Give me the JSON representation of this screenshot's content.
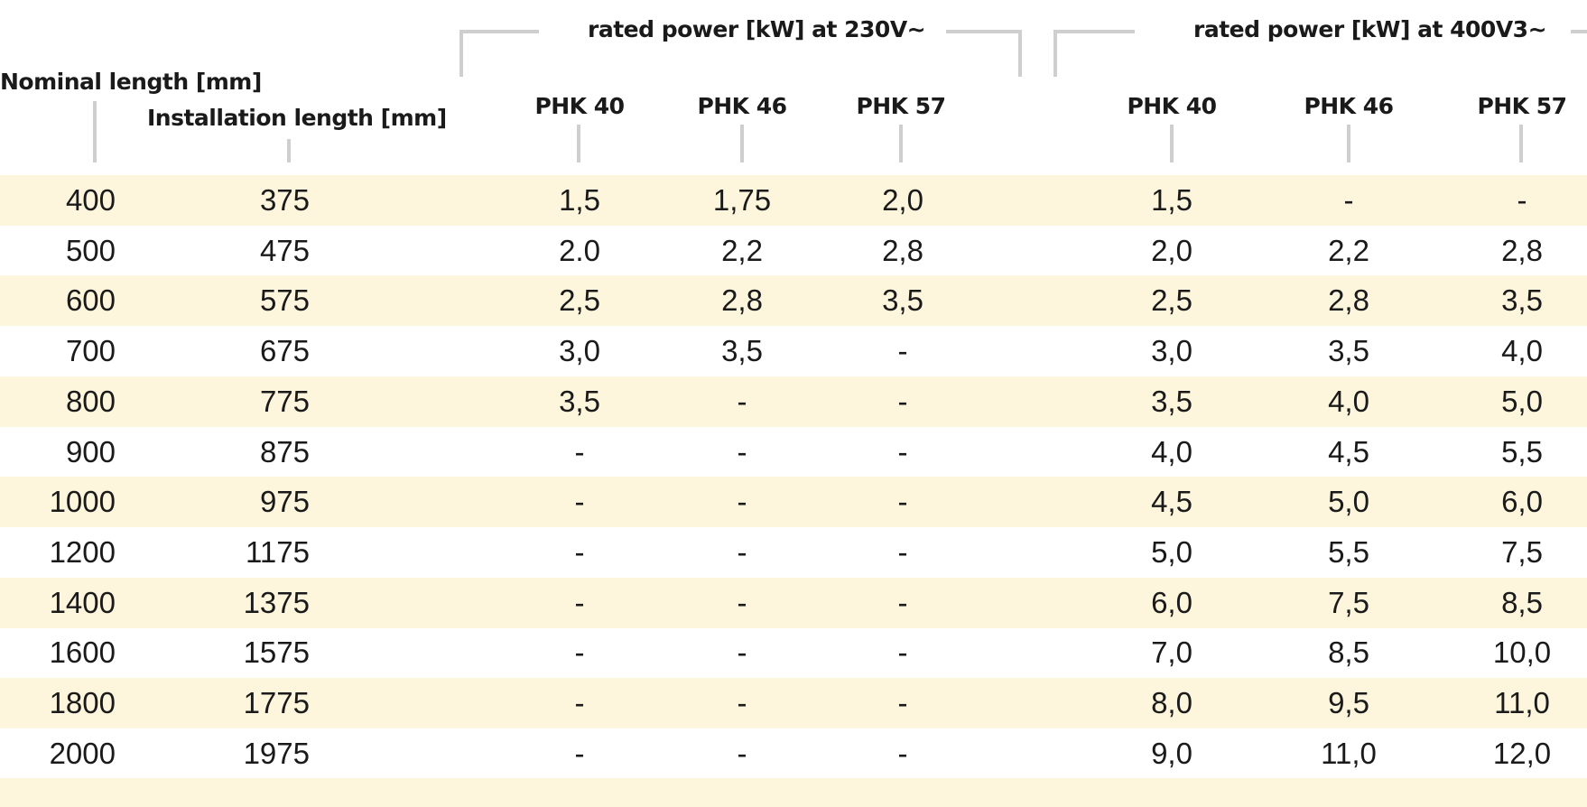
{
  "headers": {
    "nominal_length": "Nominal length [mm]",
    "installation_length": "Installation length [mm]",
    "group_230": "rated power [kW] at 230V~",
    "group_400": "rated power [kW] at 400V3~",
    "models_230": [
      "PHK 40",
      "PHK 46",
      "PHK 57"
    ],
    "models_400": [
      "PHK 40",
      "PHK 46",
      "PHK 57"
    ]
  },
  "rows": [
    {
      "nominal": "400",
      "install": "375",
      "v230": [
        "1,5",
        "1,75",
        "2,0"
      ],
      "v400": [
        "1,5",
        "-",
        "-"
      ]
    },
    {
      "nominal": "500",
      "install": "475",
      "v230": [
        "2.0",
        "2,2",
        "2,8"
      ],
      "v400": [
        "2,0",
        "2,2",
        "2,8"
      ]
    },
    {
      "nominal": "600",
      "install": "575",
      "v230": [
        "2,5",
        "2,8",
        "3,5"
      ],
      "v400": [
        "2,5",
        "2,8",
        "3,5"
      ]
    },
    {
      "nominal": "700",
      "install": "675",
      "v230": [
        "3,0",
        "3,5",
        "-"
      ],
      "v400": [
        "3,0",
        "3,5",
        "4,0"
      ]
    },
    {
      "nominal": "800",
      "install": "775",
      "v230": [
        "3,5",
        "-",
        "-"
      ],
      "v400": [
        "3,5",
        "4,0",
        "5,0"
      ]
    },
    {
      "nominal": "900",
      "install": "875",
      "v230": [
        "-",
        "-",
        "-"
      ],
      "v400": [
        "4,0",
        "4,5",
        "5,5"
      ]
    },
    {
      "nominal": "1000",
      "install": "975",
      "v230": [
        "-",
        "-",
        "-"
      ],
      "v400": [
        "4,5",
        "5,0",
        "6,0"
      ]
    },
    {
      "nominal": "1200",
      "install": "1175",
      "v230": [
        "-",
        "-",
        "-"
      ],
      "v400": [
        "5,0",
        "5,5",
        "7,5"
      ]
    },
    {
      "nominal": "1400",
      "install": "1375",
      "v230": [
        "-",
        "-",
        "-"
      ],
      "v400": [
        "6,0",
        "7,5",
        "8,5"
      ]
    },
    {
      "nominal": "1600",
      "install": "1575",
      "v230": [
        "-",
        "-",
        "-"
      ],
      "v400": [
        "7,0",
        "8,5",
        "10,0"
      ]
    },
    {
      "nominal": "1800",
      "install": "1775",
      "v230": [
        "-",
        "-",
        "-"
      ],
      "v400": [
        "8,0",
        "9,5",
        "11,0"
      ]
    },
    {
      "nominal": "2000",
      "install": "1975",
      "v230": [
        "-",
        "-",
        "-"
      ],
      "v400": [
        "9,0",
        "11,0",
        "12,0"
      ]
    }
  ],
  "colors": {
    "row_shade": "#fdf5dc",
    "rule": "#cfcfcf",
    "text": "#1a1a1a"
  }
}
